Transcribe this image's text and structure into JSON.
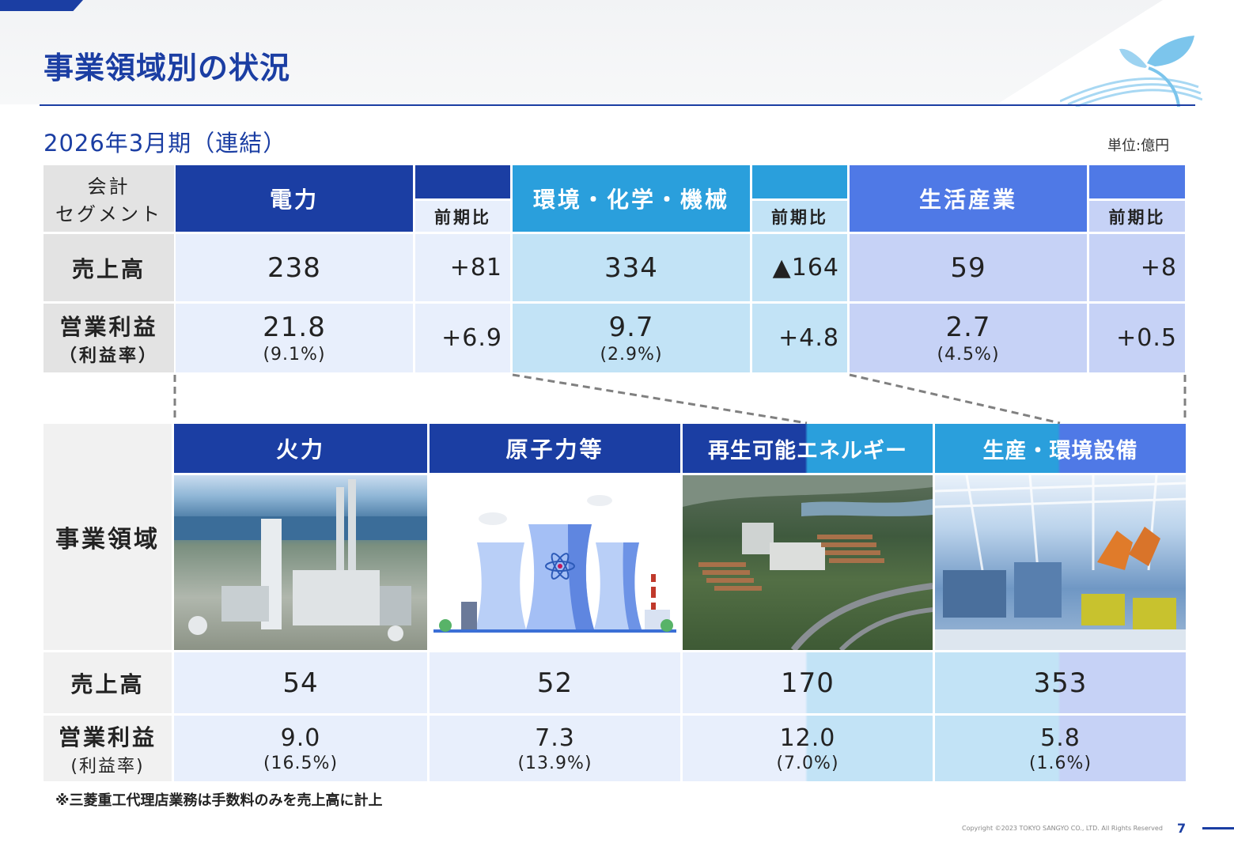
{
  "page": {
    "title": "事業領域別の状況",
    "subtitle": "2026年3月期（連結）",
    "unit": "単位:億円",
    "footnote": "※三菱重工代理店業務は手数料のみを売上高に計上",
    "copyright": "Copyright ©2023 TOKYO SANGYO CO., LTD. All Rights Reserved",
    "page_number": "7"
  },
  "segment_table": {
    "corner_line1": "会計",
    "corner_line2": "セグメント",
    "row_labels": {
      "sales": "売上高",
      "profit": "営業利益",
      "profit_rate": "（利益率）"
    },
    "yoy_label": "前期比",
    "segments": [
      {
        "name": "電力",
        "sales": "238",
        "sales_yoy": "+81",
        "profit": "21.8",
        "rate": "(9.1%)",
        "profit_yoy": "+6.9"
      },
      {
        "name": "環境・化学・機械",
        "sales": "334",
        "sales_yoy": "▲164",
        "profit": "9.7",
        "rate": "(2.9%)",
        "profit_yoy": "+4.8"
      },
      {
        "name": "生活産業",
        "sales": "59",
        "sales_yoy": "+8",
        "profit": "2.7",
        "rate": "(4.5%)",
        "profit_yoy": "+0.5"
      }
    ]
  },
  "domain_table": {
    "label": "事業領域",
    "sales_label": "売上高",
    "profit_label": "営業利益",
    "rate_label": "(利益率)",
    "domains": [
      {
        "name": "火力",
        "sales": "54",
        "profit": "9.0",
        "rate": "(16.5%)"
      },
      {
        "name": "原子力等",
        "sales": "52",
        "profit": "7.3",
        "rate": "(13.9%)"
      },
      {
        "name": "再生可能エネルギー",
        "sales": "170",
        "profit": "12.0",
        "rate": "(7.0%)"
      },
      {
        "name": "生産・環境設備",
        "sales": "353",
        "profit": "5.8",
        "rate": "(1.6%)"
      }
    ]
  }
}
